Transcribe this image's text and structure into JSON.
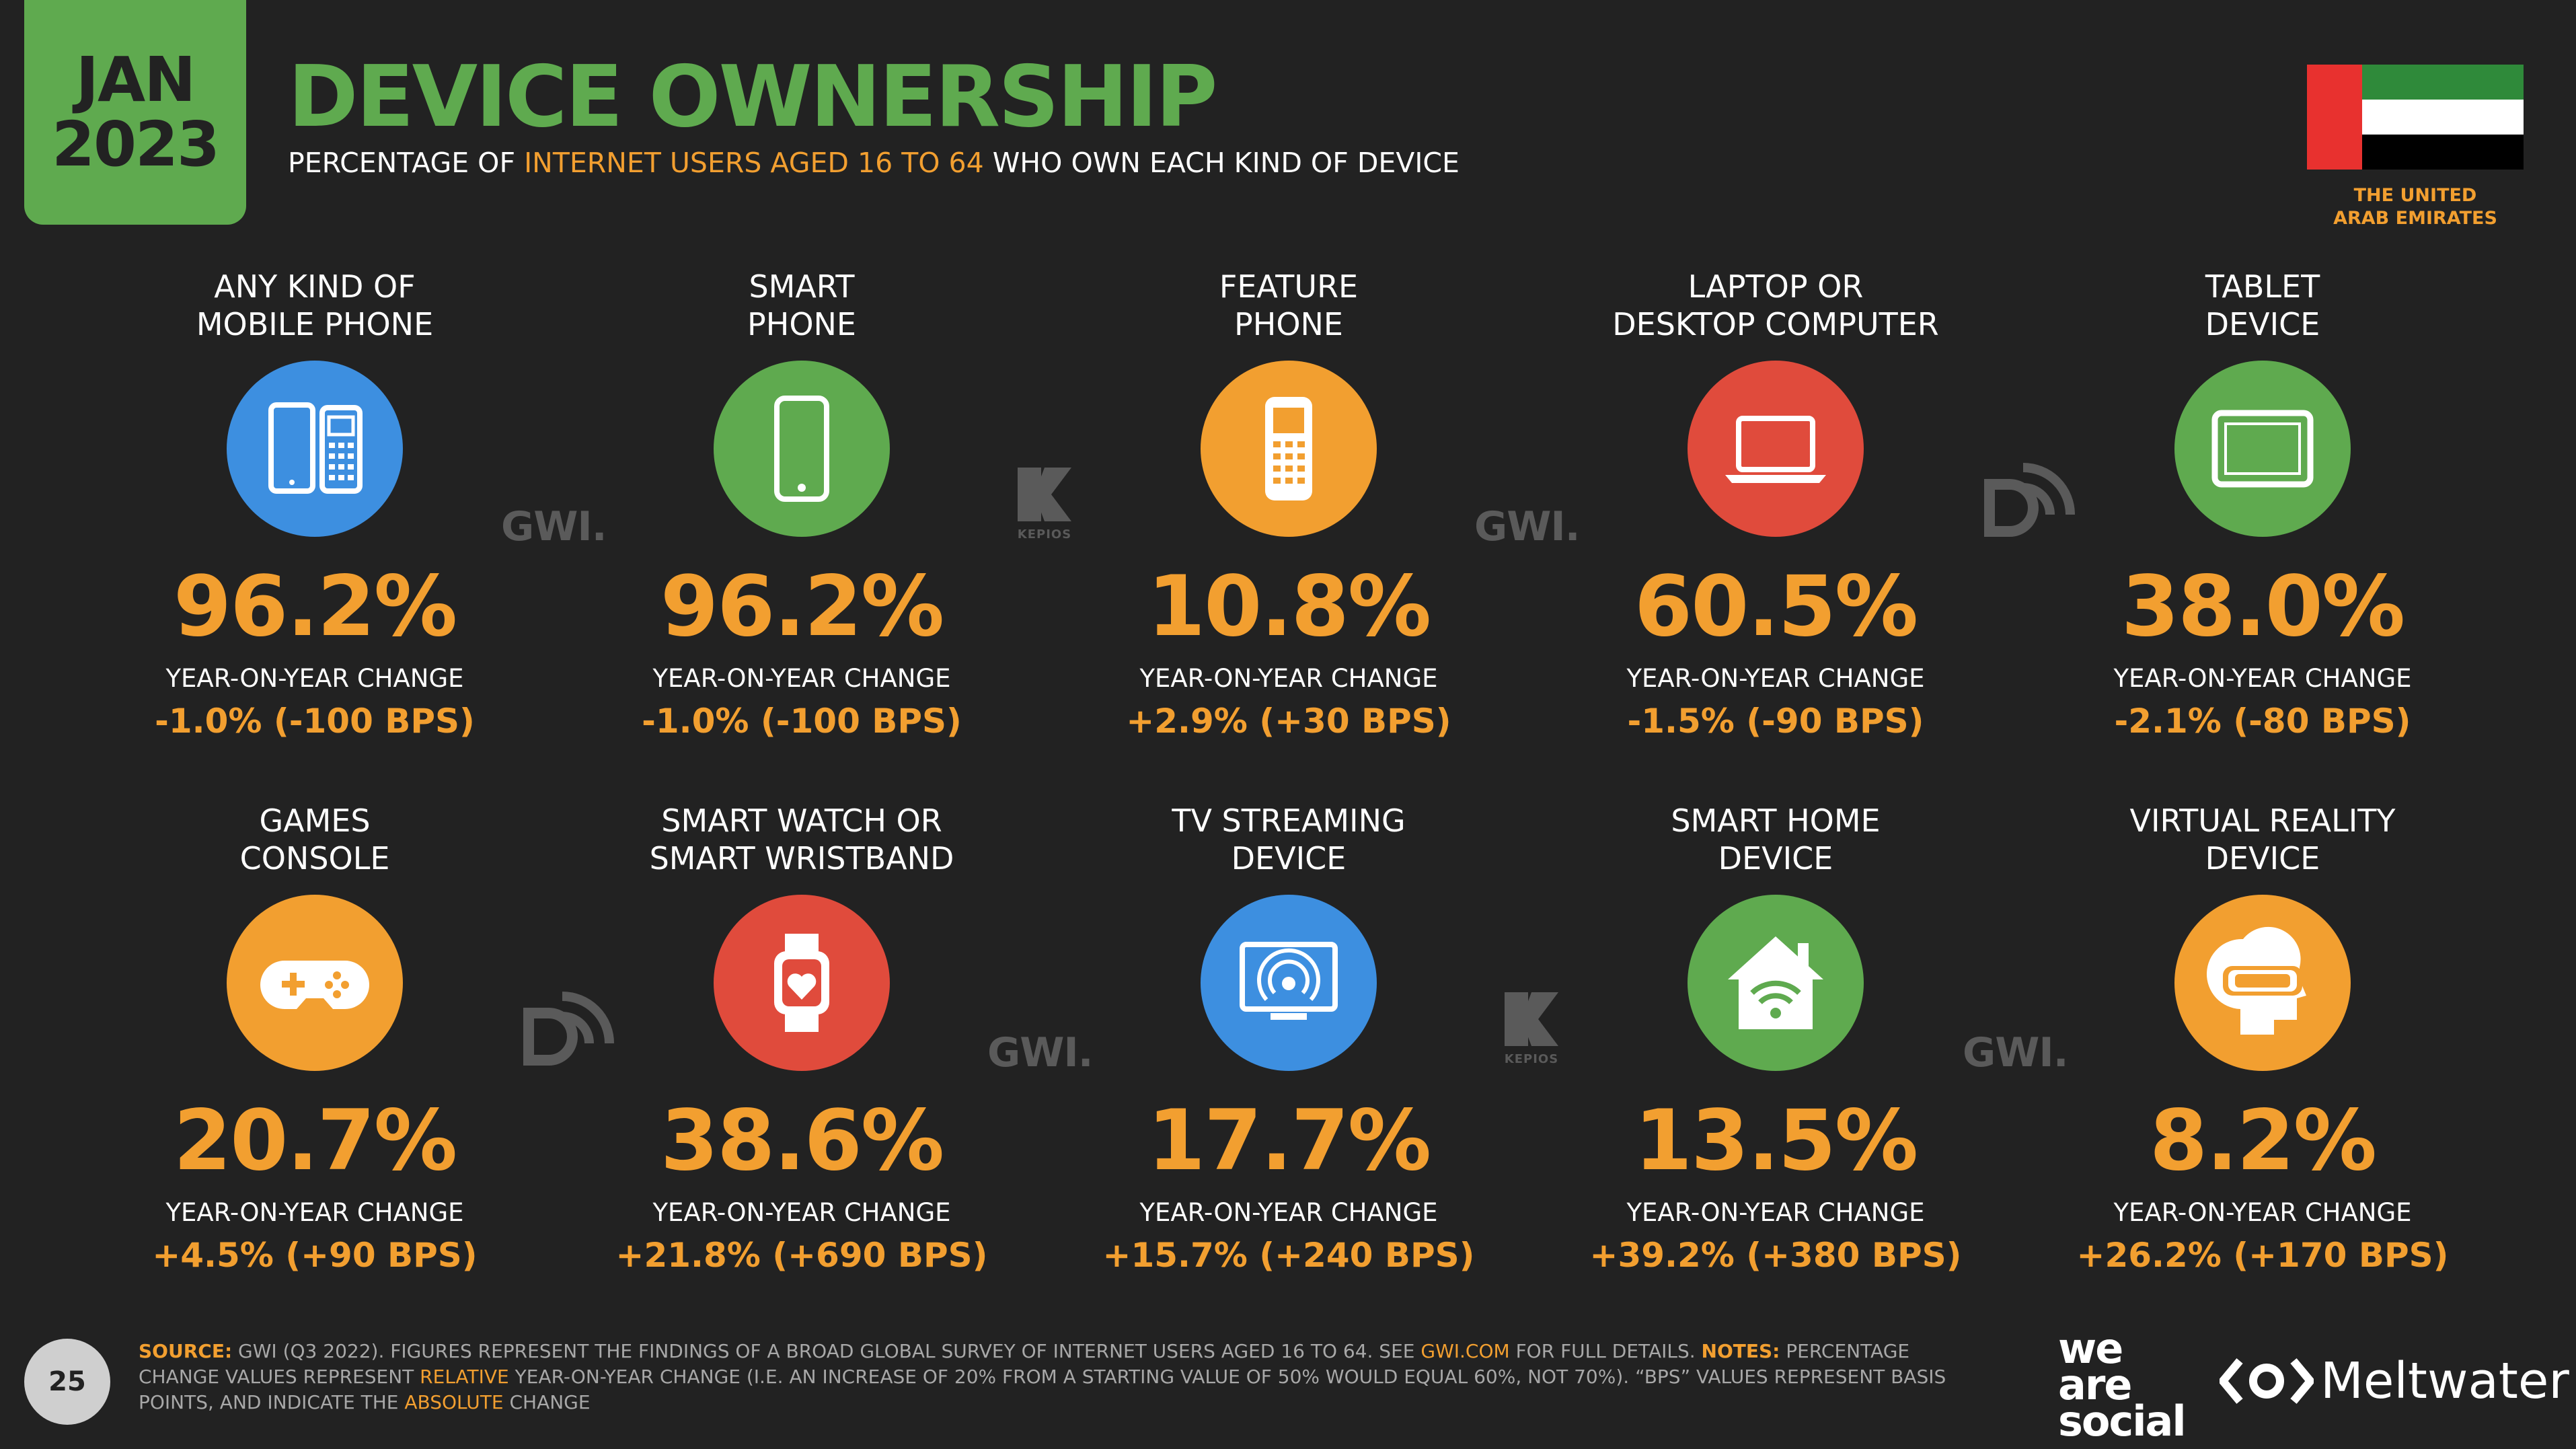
{
  "header": {
    "month": "JAN",
    "year": "2023",
    "title": "DEVICE OWNERSHIP",
    "subtitle_pre": "PERCENTAGE OF ",
    "subtitle_highlight": "INTERNET USERS AGED 16 TO 64",
    "subtitle_post": " WHO OWN EACH KIND OF DEVICE"
  },
  "flag": {
    "country_line1": "THE UNITED",
    "country_line2": "ARAB EMIRATES",
    "colors": {
      "red": "#e8312f",
      "green": "#2f8a3a",
      "white": "#ffffff",
      "black": "#000000"
    }
  },
  "colors": {
    "accent": "#f29f30",
    "brand_green": "#5faa4f",
    "blue": "#3d8fe0",
    "green": "#5faa4f",
    "orange": "#f29f30",
    "red": "#e04b3c"
  },
  "yoy_label": "YEAR-ON-YEAR CHANGE",
  "devices": [
    {
      "line1": "ANY KIND OF",
      "line2": "MOBILE PHONE",
      "value": "96.2%",
      "change": "-1.0% (-100 BPS)",
      "icon": "mobile-phones-icon",
      "color": "#3d8fe0"
    },
    {
      "line1": "SMART",
      "line2": "PHONE",
      "value": "96.2%",
      "change": "-1.0% (-100 BPS)",
      "icon": "smartphone-icon",
      "color": "#5faa4f"
    },
    {
      "line1": "FEATURE",
      "line2": "PHONE",
      "value": "10.8%",
      "change": "+2.9% (+30 BPS)",
      "icon": "feature-phone-icon",
      "color": "#f29f30"
    },
    {
      "line1": "LAPTOP OR",
      "line2": "DESKTOP COMPUTER",
      "value": "60.5%",
      "change": "-1.5% (-90 BPS)",
      "icon": "laptop-icon",
      "color": "#e04b3c"
    },
    {
      "line1": "TABLET",
      "line2": "DEVICE",
      "value": "38.0%",
      "change": "-2.1% (-80 BPS)",
      "icon": "tablet-icon",
      "color": "#5faa4f"
    },
    {
      "line1": "GAMES",
      "line2": "CONSOLE",
      "value": "20.7%",
      "change": "+4.5% (+90 BPS)",
      "icon": "gamepad-icon",
      "color": "#f29f30"
    },
    {
      "line1": "SMART WATCH OR",
      "line2": "SMART WRISTBAND",
      "value": "38.6%",
      "change": "+21.8% (+690 BPS)",
      "icon": "smartwatch-icon",
      "color": "#e04b3c"
    },
    {
      "line1": "TV STREAMING",
      "line2": "DEVICE",
      "value": "17.7%",
      "change": "+15.7% (+240 BPS)",
      "icon": "tv-streaming-icon",
      "color": "#3d8fe0"
    },
    {
      "line1": "SMART HOME",
      "line2": "DEVICE",
      "value": "13.5%",
      "change": "+39.2% (+380 BPS)",
      "icon": "smart-home-icon",
      "color": "#5faa4f"
    },
    {
      "line1": "VIRTUAL REALITY",
      "line2": "DEVICE",
      "value": "8.2%",
      "change": "+26.2% (+170 BPS)",
      "icon": "vr-headset-icon",
      "color": "#f29f30"
    }
  ],
  "watermarks": {
    "gwi": "GWI.",
    "kepios": "KEPIOS",
    "datareportal_icon": "datareportal-icon"
  },
  "footer": {
    "source_key": "SOURCE:",
    "source_text_1": " GWI (Q3 2022). FIGURES REPRESENT THE FINDINGS OF A BROAD GLOBAL SURVEY OF INTERNET USERS AGED 16 TO 64. SEE ",
    "source_link": "GWI.COM",
    "source_text_2": " FOR FULL DETAILS. ",
    "notes_key": "NOTES:",
    "notes_text_1": " PERCENTAGE CHANGE VALUES REPRESENT ",
    "notes_relative": "RELATIVE",
    "notes_text_2": " YEAR-ON-YEAR CHANGE (I.E. AN INCREASE OF 20% FROM A STARTING VALUE OF 50% WOULD EQUAL 60%, NOT 70%). “BPS” VALUES REPRESENT BASIS POINTS, AND INDICATE THE ",
    "notes_absolute": "ABSOLUTE",
    "notes_text_3": " CHANGE"
  },
  "page_number": "25",
  "brands": {
    "was_1": "we",
    "was_2": "are",
    "was_3": "social",
    "meltwater": "Meltwater"
  }
}
